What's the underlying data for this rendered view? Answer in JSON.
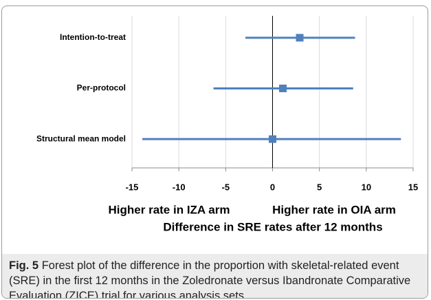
{
  "chart_data": {
    "type": "forest",
    "categories": [
      "Intention-to-treat",
      "Per-protocol",
      "Structural mean model"
    ],
    "values": [
      2.9,
      1.1,
      0
    ],
    "ci_low": [
      -2.9,
      -6.3,
      -13.9
    ],
    "ci_high": [
      8.8,
      8.6,
      13.7
    ],
    "color": "#4f81bd",
    "xlim": [
      -15,
      15
    ],
    "xticks": [
      -15,
      -10,
      -5,
      0,
      5,
      10,
      15
    ],
    "grid": true,
    "left_label": "Higher rate in IZA arm",
    "right_label": "Higher rate in OIA arm",
    "x_label": "Difference in SRE rates after 12 months"
  },
  "caption": {
    "label": "Fig. 5",
    "text": "Forest plot of the difference in the proportion with skeletal-related event (SRE) in the first 12 months in the Zoledronate versus Ibandronate Comparative Evaluation (ZICE) trial for various analysis sets"
  }
}
